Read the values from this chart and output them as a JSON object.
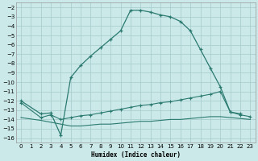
{
  "xlabel": "Humidex (Indice chaleur)",
  "bg_color": "#cce9e9",
  "grid_color": "#aacfcf",
  "line_color": "#2a7a70",
  "xlim": [
    -0.5,
    23.5
  ],
  "ylim": [
    -16.5,
    -1.5
  ],
  "xticks": [
    0,
    1,
    2,
    3,
    4,
    5,
    6,
    7,
    8,
    9,
    10,
    11,
    12,
    13,
    14,
    15,
    16,
    17,
    18,
    19,
    20,
    21,
    22,
    23
  ],
  "yticks": [
    -2,
    -3,
    -4,
    -5,
    -6,
    -7,
    -8,
    -9,
    -10,
    -11,
    -12,
    -13,
    -14,
    -15,
    -16
  ],
  "curve1_x": [
    0,
    2,
    3,
    4,
    5,
    6,
    7,
    8,
    9,
    10,
    11,
    12,
    13,
    14,
    15,
    16,
    17,
    18,
    19,
    20,
    21,
    22
  ],
  "curve1_y": [
    -12.0,
    -13.4,
    -13.3,
    -15.7,
    -9.5,
    -8.2,
    -7.2,
    -6.3,
    -5.4,
    -4.5,
    -2.3,
    -2.3,
    -2.5,
    -2.8,
    -3.0,
    -3.5,
    -4.5,
    -6.5,
    -8.5,
    -10.5,
    -13.2,
    -13.4
  ],
  "curve2_x": [
    0,
    2,
    3,
    4,
    5,
    6,
    7,
    8,
    9,
    10,
    11,
    12,
    13,
    14,
    15,
    16,
    17,
    18,
    19,
    20,
    21,
    22,
    23
  ],
  "curve2_y": [
    -12.2,
    -13.8,
    -13.5,
    -14.0,
    -13.8,
    -13.6,
    -13.5,
    -13.3,
    -13.1,
    -12.9,
    -12.7,
    -12.5,
    -12.4,
    -12.2,
    -12.1,
    -11.9,
    -11.7,
    -11.5,
    -11.3,
    -11.0,
    -13.2,
    -13.5,
    -13.7
  ],
  "curve3_x": [
    0,
    2,
    3,
    4,
    5,
    6,
    7,
    8,
    9,
    10,
    11,
    12,
    13,
    14,
    15,
    16,
    17,
    18,
    19,
    20,
    21,
    22,
    23
  ],
  "curve3_y": [
    -13.8,
    -14.1,
    -14.3,
    -14.5,
    -14.7,
    -14.7,
    -14.6,
    -14.5,
    -14.5,
    -14.4,
    -14.3,
    -14.2,
    -14.2,
    -14.1,
    -14.0,
    -14.0,
    -13.9,
    -13.8,
    -13.7,
    -13.7,
    -13.8,
    -13.9,
    -14.0
  ],
  "xlabel_fontsize": 5.5,
  "tick_fontsize": 5.0
}
